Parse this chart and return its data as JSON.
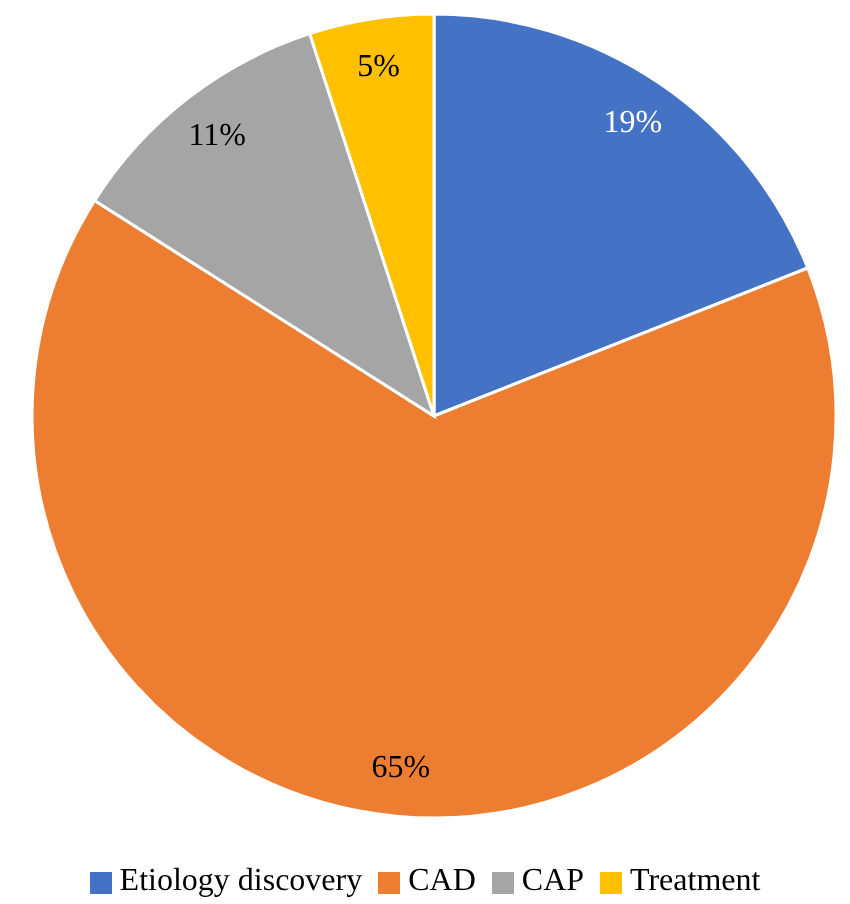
{
  "chart_data": {
    "type": "pie",
    "categories": [
      "Etiology discovery",
      "CAD",
      "CAP",
      "Treatment"
    ],
    "values": [
      19,
      65,
      11,
      5
    ],
    "colors": [
      "#4472c4",
      "#ed7d31",
      "#a5a5a5",
      "#ffc000"
    ],
    "value_labels": [
      "19%",
      "65%",
      "11%",
      "5%"
    ],
    "legend": "bottom"
  }
}
